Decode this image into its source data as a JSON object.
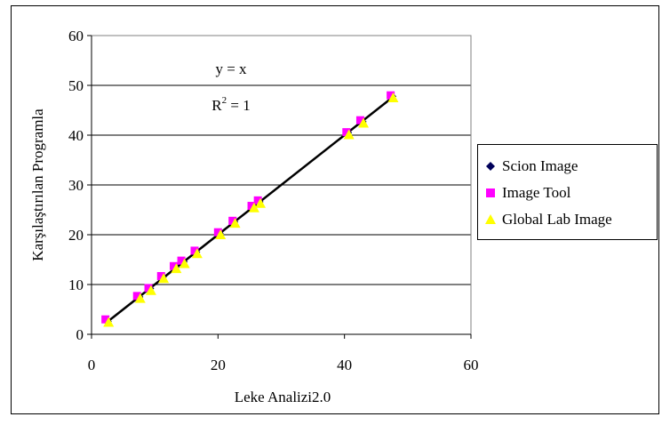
{
  "chart_data": {
    "type": "scatter",
    "xlabel": "Leke Analizi2.0",
    "ylabel": "Karşılaştırılan Programla",
    "xlim": [
      0,
      60
    ],
    "ylim": [
      0,
      60
    ],
    "xticks": [
      "0",
      "20",
      "40",
      "60"
    ],
    "yticks": [
      "0",
      "10",
      "20",
      "30",
      "40",
      "50",
      "60"
    ],
    "grid": "horizontal",
    "legend_position": "right",
    "annotation": {
      "equation": "y = x",
      "r2_prefix": "R",
      "r2_sup": "2",
      "r2_suffix": " = 1"
    },
    "trendline": {
      "x": [
        2.5,
        47.5
      ],
      "y": [
        2.5,
        47.5
      ],
      "color": "#000000"
    },
    "series": [
      {
        "name": "Scion Image",
        "marker": "diamond",
        "color": "#00005a",
        "x": [
          2.5,
          7.5,
          9.2,
          11.2,
          13.2,
          14.5,
          16.5,
          20.2,
          22.5,
          25.5,
          26.5,
          40.5,
          42.8,
          47.5
        ],
        "y": [
          2.6,
          7.5,
          9.2,
          11.5,
          13.5,
          14.6,
          16.5,
          20.3,
          22.6,
          25.6,
          26.6,
          40.5,
          42.7,
          47.8
        ]
      },
      {
        "name": "Image Tool",
        "marker": "square",
        "color": "#ff00ff",
        "x": [
          2.2,
          7.2,
          9.0,
          11.0,
          13.0,
          14.2,
          16.3,
          20.0,
          22.3,
          25.3,
          26.3,
          40.3,
          42.5,
          47.3
        ],
        "y": [
          3.0,
          7.7,
          9.3,
          11.7,
          13.7,
          14.8,
          16.8,
          20.5,
          22.8,
          25.8,
          26.9,
          40.6,
          43.0,
          48.0
        ]
      },
      {
        "name": "Global Lab Image",
        "marker": "triangle",
        "color": "#ffff00",
        "x": [
          2.7,
          7.7,
          9.4,
          11.4,
          13.4,
          14.7,
          16.7,
          20.4,
          22.7,
          25.7,
          26.7,
          40.7,
          43.0,
          47.7
        ],
        "y": [
          2.4,
          7.2,
          8.8,
          11.2,
          13.2,
          14.2,
          16.2,
          20.0,
          22.3,
          25.4,
          26.3,
          40.1,
          42.4,
          47.5
        ]
      }
    ]
  }
}
